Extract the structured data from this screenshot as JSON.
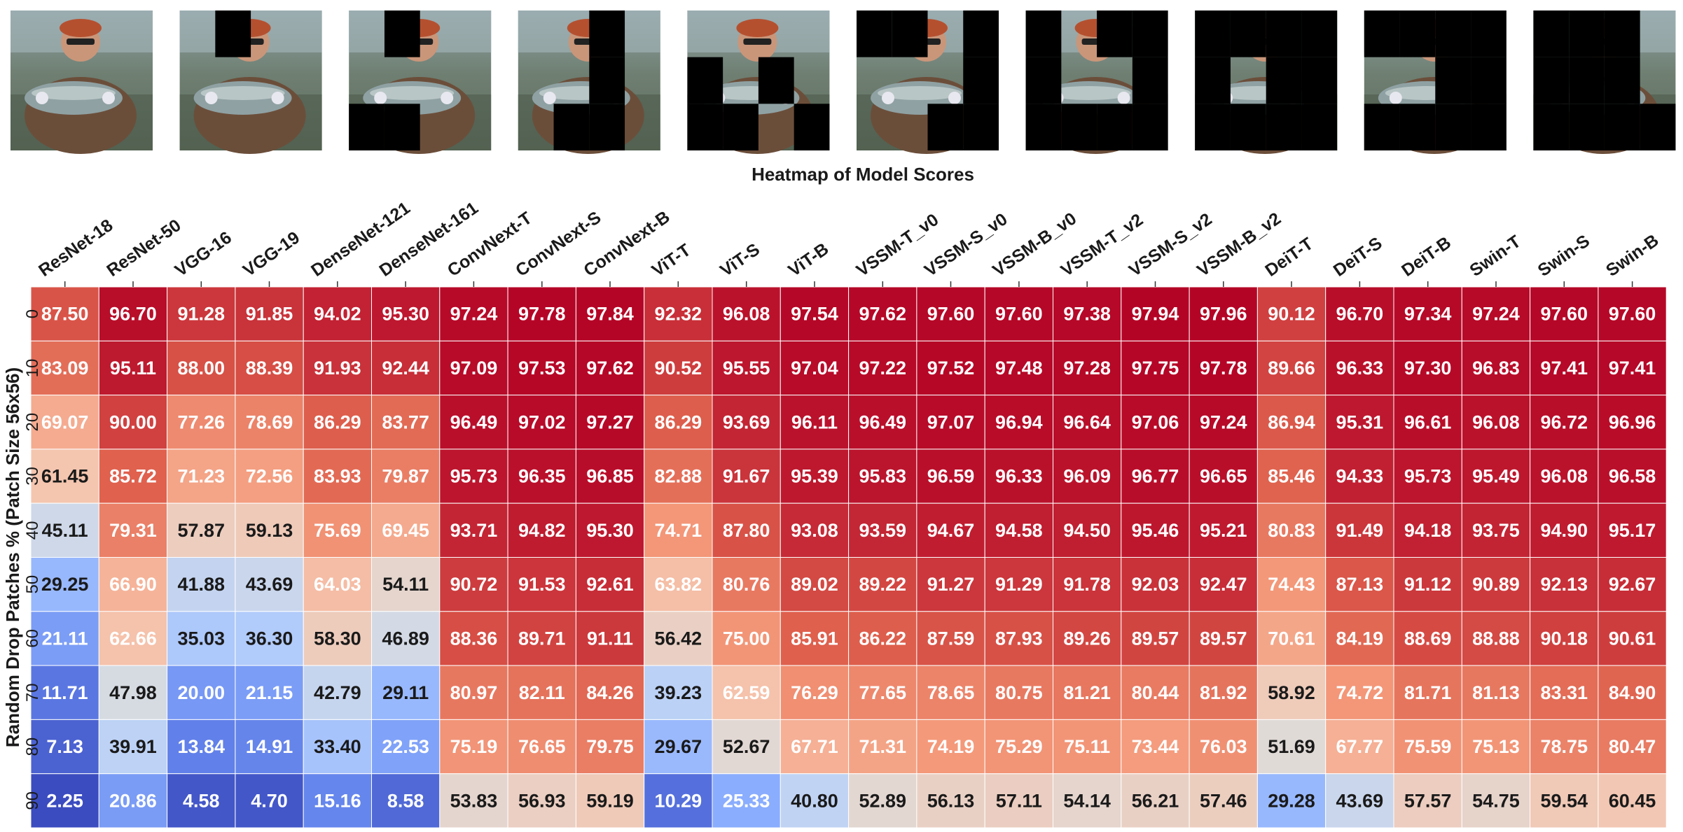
{
  "chart_data": {
    "type": "heatmap",
    "title": "Heatmap of Model Scores",
    "xlabel": "",
    "ylabel": "Random Drop Patches % (Patch Size 56x56)",
    "colormap": "coolwarm",
    "vmin": 2.25,
    "vmax": 97.96,
    "models": [
      "ResNet-18",
      "ResNet-50",
      "VGG-16",
      "VGG-19",
      "DenseNet-121",
      "DenseNet-161",
      "ConvNext-T",
      "ConvNext-S",
      "ConvNext-B",
      "ViT-T",
      "ViT-S",
      "ViT-B",
      "VSSM-T_v0",
      "VSSM-S_v0",
      "VSSM-B_v0",
      "VSSM-T_v2",
      "VSSM-S_v2",
      "VSSM-B_v2",
      "DeiT-T",
      "DeiT-S",
      "DeiT-B",
      "Swin-T",
      "Swin-S",
      "Swin-B"
    ],
    "drop_levels": [
      "0",
      "10",
      "20",
      "30",
      "40",
      "50",
      "60",
      "70",
      "80",
      "90"
    ],
    "values": [
      [
        87.5,
        96.7,
        91.28,
        91.85,
        94.02,
        95.3,
        97.24,
        97.78,
        97.84,
        92.32,
        96.08,
        97.54,
        97.62,
        97.6,
        97.6,
        97.38,
        97.94,
        97.96,
        90.12,
        96.7,
        97.34,
        97.24,
        97.6,
        97.6
      ],
      [
        83.09,
        95.11,
        88.0,
        88.39,
        91.93,
        92.44,
        97.09,
        97.53,
        97.62,
        90.52,
        95.55,
        97.04,
        97.22,
        97.52,
        97.48,
        97.28,
        97.75,
        97.78,
        89.66,
        96.33,
        97.3,
        96.83,
        97.41,
        97.41
      ],
      [
        69.07,
        90.0,
        77.26,
        78.69,
        86.29,
        83.77,
        96.49,
        97.02,
        97.27,
        86.29,
        93.69,
        96.11,
        96.49,
        97.07,
        96.94,
        96.64,
        97.06,
        97.24,
        86.94,
        95.31,
        96.61,
        96.08,
        96.72,
        96.96
      ],
      [
        61.45,
        85.72,
        71.23,
        72.56,
        83.93,
        79.87,
        95.73,
        96.35,
        96.85,
        82.88,
        91.67,
        95.39,
        95.83,
        96.59,
        96.33,
        96.09,
        96.77,
        96.65,
        85.46,
        94.33,
        95.73,
        95.49,
        96.08,
        96.58
      ],
      [
        45.11,
        79.31,
        57.87,
        59.13,
        75.69,
        69.45,
        93.71,
        94.82,
        95.3,
        74.71,
        87.8,
        93.08,
        93.59,
        94.67,
        94.58,
        94.5,
        95.46,
        95.21,
        80.83,
        91.49,
        94.18,
        93.75,
        94.9,
        95.17
      ],
      [
        29.25,
        66.9,
        41.88,
        43.69,
        64.03,
        54.11,
        90.72,
        91.53,
        92.61,
        63.82,
        80.76,
        89.02,
        89.22,
        91.27,
        91.29,
        91.78,
        92.03,
        92.47,
        74.43,
        87.13,
        91.12,
        90.89,
        92.13,
        92.67
      ],
      [
        21.11,
        62.66,
        35.03,
        36.3,
        58.3,
        46.89,
        88.36,
        89.71,
        91.11,
        56.42,
        75.0,
        85.91,
        86.22,
        87.59,
        87.93,
        89.26,
        89.57,
        89.57,
        70.61,
        84.19,
        88.69,
        88.88,
        90.18,
        90.61
      ],
      [
        11.71,
        47.98,
        20.0,
        21.15,
        42.79,
        29.11,
        80.97,
        82.11,
        84.26,
        39.23,
        62.59,
        76.29,
        77.65,
        78.65,
        80.75,
        81.21,
        80.44,
        81.92,
        58.92,
        74.72,
        81.71,
        81.13,
        83.31,
        84.9
      ],
      [
        7.13,
        39.91,
        13.84,
        14.91,
        33.4,
        22.53,
        75.19,
        76.65,
        79.75,
        29.67,
        52.67,
        67.71,
        71.31,
        74.19,
        75.29,
        75.11,
        73.44,
        76.03,
        51.69,
        67.77,
        75.59,
        75.13,
        78.75,
        80.47
      ],
      [
        2.25,
        20.86,
        4.58,
        4.7,
        15.16,
        8.58,
        53.83,
        56.93,
        59.19,
        10.29,
        25.33,
        40.8,
        52.89,
        56.13,
        57.11,
        54.14,
        56.21,
        57.46,
        29.28,
        43.69,
        57.57,
        54.75,
        59.54,
        60.45
      ]
    ],
    "thumbnail_masks": [
      [],
      [
        [
          0,
          1
        ]
      ],
      [
        [
          0,
          1
        ],
        [
          2,
          0
        ],
        [
          2,
          1
        ]
      ],
      [
        [
          0,
          2
        ],
        [
          1,
          2
        ],
        [
          2,
          1
        ],
        [
          2,
          2
        ]
      ],
      [
        [
          1,
          0
        ],
        [
          1,
          2
        ],
        [
          2,
          0
        ],
        [
          2,
          1
        ],
        [
          2,
          3
        ]
      ],
      [
        [
          0,
          0
        ],
        [
          0,
          1
        ],
        [
          0,
          3
        ],
        [
          1,
          3
        ],
        [
          2,
          2
        ],
        [
          2,
          3
        ]
      ],
      [
        [
          0,
          0
        ],
        [
          0,
          2
        ],
        [
          0,
          3
        ],
        [
          1,
          0
        ],
        [
          1,
          3
        ],
        [
          2,
          0
        ],
        [
          2,
          1
        ],
        [
          2,
          2
        ],
        [
          2,
          3
        ]
      ],
      [
        [
          0,
          0
        ],
        [
          0,
          1
        ],
        [
          0,
          2
        ],
        [
          0,
          3
        ],
        [
          1,
          0
        ],
        [
          1,
          2
        ],
        [
          1,
          3
        ],
        [
          2,
          0
        ],
        [
          2,
          1
        ],
        [
          2,
          2
        ],
        [
          2,
          3
        ]
      ],
      [
        [
          0,
          0
        ],
        [
          0,
          1
        ],
        [
          0,
          2
        ],
        [
          0,
          3
        ],
        [
          2,
          0
        ],
        [
          2,
          1
        ],
        [
          2,
          2
        ],
        [
          2,
          3
        ],
        [
          1,
          2
        ],
        [
          1,
          3
        ]
      ],
      [
        [
          0,
          0
        ],
        [
          0,
          1
        ],
        [
          0,
          2
        ],
        [
          1,
          0
        ],
        [
          1,
          1
        ],
        [
          1,
          2
        ],
        [
          2,
          0
        ],
        [
          2,
          1
        ],
        [
          2,
          3
        ],
        [
          2,
          2
        ]
      ]
    ]
  }
}
